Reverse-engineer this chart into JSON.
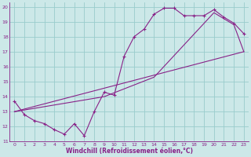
{
  "xlabel": "Windchill (Refroidissement éolien,°C)",
  "bg_color": "#cce8e8",
  "line_color": "#882288",
  "grid_color": "#99cccc",
  "xlim": [
    -0.5,
    23.5
  ],
  "ylim": [
    11,
    20.3
  ],
  "xticks": [
    0,
    1,
    2,
    3,
    4,
    5,
    6,
    7,
    8,
    9,
    10,
    11,
    12,
    13,
    14,
    15,
    16,
    17,
    18,
    19,
    20,
    21,
    22,
    23
  ],
  "yticks": [
    11,
    12,
    13,
    14,
    15,
    16,
    17,
    18,
    19,
    20
  ],
  "line1_x": [
    0,
    1,
    2,
    3,
    4,
    5,
    6,
    7,
    8,
    9,
    10,
    11,
    12,
    13,
    14,
    15,
    16,
    17,
    18,
    19,
    20,
    21,
    22,
    23
  ],
  "line1_y": [
    13.7,
    12.8,
    12.4,
    12.2,
    11.8,
    11.5,
    12.2,
    11.4,
    13.0,
    14.3,
    14.1,
    16.7,
    18.0,
    18.5,
    19.5,
    19.9,
    19.9,
    19.4,
    19.4,
    19.4,
    19.8,
    19.3,
    18.9,
    18.2
  ],
  "line2_x": [
    0,
    23
  ],
  "line2_y": [
    13.0,
    17.0
  ],
  "line3_x": [
    0,
    9,
    14,
    20,
    21,
    22,
    23
  ],
  "line3_y": [
    13.0,
    14.0,
    15.3,
    19.6,
    19.2,
    18.8,
    17.0
  ]
}
